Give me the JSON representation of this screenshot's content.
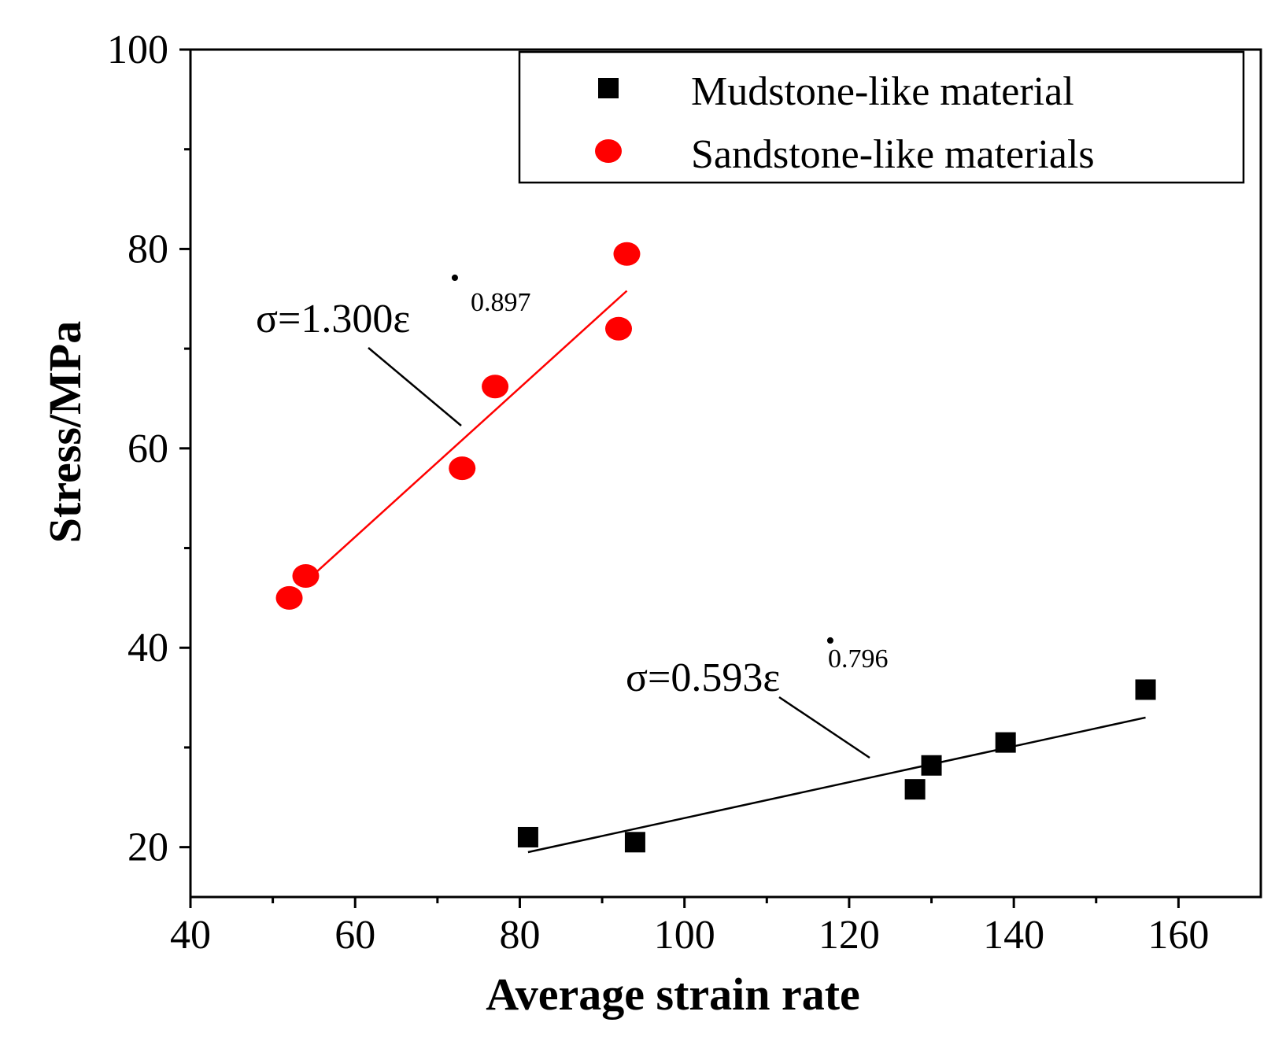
{
  "chart_data": {
    "type": "scatter",
    "xlabel": "Average strain rate",
    "ylabel": "Stress/MPa",
    "xlim": [
      40,
      170
    ],
    "ylim": [
      15,
      100
    ],
    "x_ticks": [
      40,
      60,
      80,
      100,
      120,
      140,
      160
    ],
    "x_tick_labels": [
      "40",
      "60",
      "80",
      "100",
      "120",
      "140",
      "160"
    ],
    "y_ticks": [
      20,
      40,
      60,
      80,
      100
    ],
    "y_tick_labels": [
      "20",
      "40",
      "60",
      "80",
      "100"
    ],
    "x_minor_ticks": [
      50,
      70,
      90,
      110,
      130,
      150
    ],
    "y_minor_ticks": [
      30,
      50,
      70,
      90
    ],
    "grid": false,
    "legend_position": "top-right",
    "series": [
      {
        "name": "Mudstone-like material",
        "marker": "square",
        "color": "#000000",
        "points": [
          {
            "x": 81,
            "y": 21.0
          },
          {
            "x": 94,
            "y": 20.5
          },
          {
            "x": 128,
            "y": 25.8
          },
          {
            "x": 130,
            "y": 28.2
          },
          {
            "x": 139,
            "y": 30.5
          },
          {
            "x": 156,
            "y": 35.8
          }
        ],
        "fit": {
          "x_range": [
            81,
            156
          ],
          "y_range": [
            19.5,
            33.0
          ],
          "color": "#000000",
          "equation": {
            "prefix": "σ=0.593ε",
            "exponent": "0.796",
            "dot_mark": "•"
          }
        }
      },
      {
        "name": "Sandstone-like materials",
        "marker": "circle",
        "color": "#ff0000",
        "points": [
          {
            "x": 52,
            "y": 45.0
          },
          {
            "x": 54,
            "y": 47.2
          },
          {
            "x": 73,
            "y": 58.0
          },
          {
            "x": 77,
            "y": 66.2
          },
          {
            "x": 92,
            "y": 72.0
          },
          {
            "x": 93,
            "y": 79.5
          }
        ],
        "fit": {
          "x_range": [
            54.5,
            93
          ],
          "y_range": [
            47.0,
            75.8
          ],
          "color": "#ff0000",
          "equation": {
            "prefix": "σ=1.300ε",
            "exponent": "0.897",
            "dot_mark": "•"
          }
        }
      }
    ]
  }
}
